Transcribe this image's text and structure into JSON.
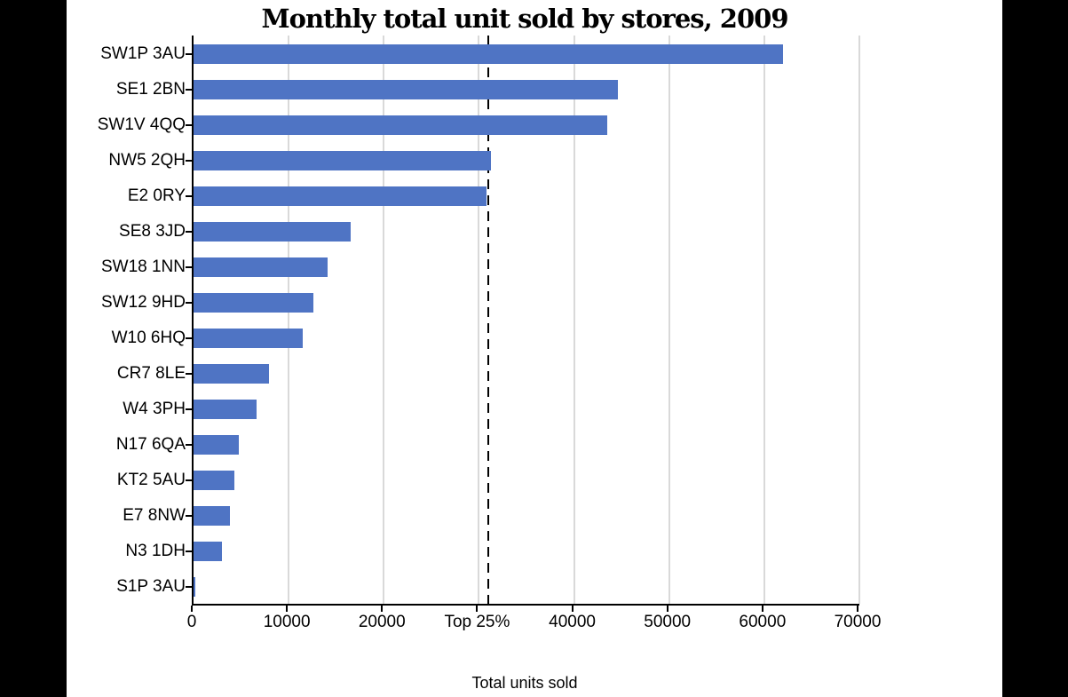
{
  "chart_data": {
    "type": "bar",
    "orientation": "horizontal",
    "title": "Monthly total unit sold by stores, 2009",
    "xlabel": "Total units sold",
    "ylabel": "",
    "xlim": [
      0,
      70000
    ],
    "grid": "vertical light gray lines at x ticks, drawn behind bars",
    "legend": "none",
    "categories": [
      "SW1P 3AU",
      "SE1 2BN",
      "SW1V 4QQ",
      "NW5 2QH",
      "E2 0RY",
      "SE8 3JD",
      "SW18 1NN",
      "SW12 9HD",
      "W10 6HQ",
      "CR7 8LE",
      "W4 3PH",
      "N17 6QA",
      "KT2 5AU",
      "E7 8NW",
      "N3 1DH",
      "S1P 3AU"
    ],
    "values": [
      62000,
      44600,
      43500,
      31300,
      30800,
      16500,
      14100,
      12600,
      11500,
      7900,
      6600,
      4800,
      4300,
      3800,
      3000,
      150
    ],
    "xticks": [
      {
        "value": 0,
        "label": "0"
      },
      {
        "value": 10000,
        "label": "10000"
      },
      {
        "value": 20000,
        "label": "20000"
      },
      {
        "value": 30000,
        "label": "Top 25%"
      },
      {
        "value": 40000,
        "label": "40000"
      },
      {
        "value": 50000,
        "label": "50000"
      },
      {
        "value": 60000,
        "label": "60000"
      },
      {
        "value": 70000,
        "label": "70000"
      }
    ],
    "reference_line": {
      "value": 31000,
      "style": "dashed",
      "label": "Top 25%",
      "color": "#000000"
    },
    "colors": {
      "bar": "#4f74c4",
      "gridline": "#d9d9d9",
      "axis": "#000000",
      "text": "#000000",
      "background": "#ffffff",
      "letterbox": "#000000"
    }
  }
}
